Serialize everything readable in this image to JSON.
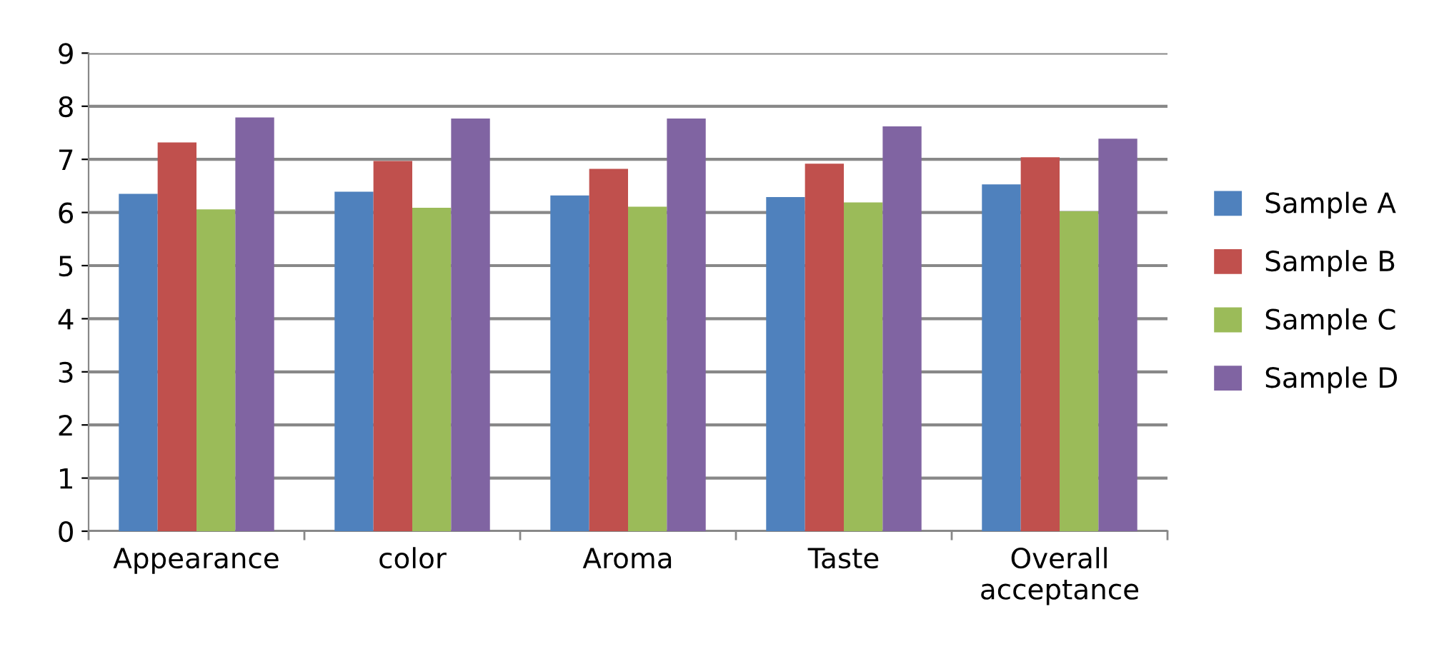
{
  "chart_data": {
    "type": "bar",
    "categories": [
      "Appearance",
      "color",
      "Aroma",
      "Taste",
      "Overall\nacceptance"
    ],
    "series": [
      {
        "name": "Sample A",
        "color": "#4f81bd",
        "values": [
          6.35,
          6.39,
          6.32,
          6.29,
          6.53
        ]
      },
      {
        "name": "Sample B",
        "color": "#c0504d",
        "values": [
          7.32,
          6.97,
          6.82,
          6.92,
          7.04
        ]
      },
      {
        "name": "Sample C",
        "color": "#9bbb59",
        "values": [
          6.06,
          6.09,
          6.11,
          6.19,
          6.02
        ]
      },
      {
        "name": "Sample D",
        "color": "#8064a2",
        "values": [
          7.79,
          7.77,
          7.77,
          7.62,
          7.39
        ]
      }
    ],
    "ylim": [
      0,
      9
    ],
    "yticks": [
      0,
      1,
      2,
      3,
      4,
      5,
      6,
      7,
      8,
      9
    ],
    "grid": "y",
    "legend": "right"
  }
}
